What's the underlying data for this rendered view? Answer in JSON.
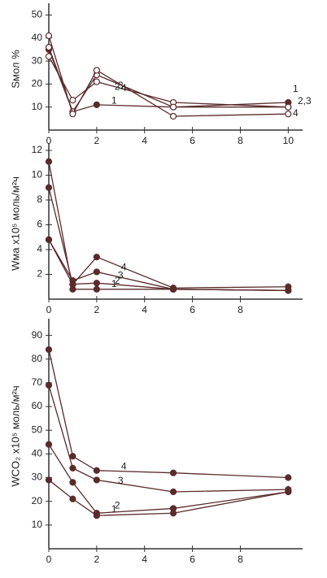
{
  "chart_data": [
    {
      "type": "line",
      "y_label": "Sмол %",
      "x": [
        0,
        1,
        2,
        5.2,
        10
      ],
      "xlim": [
        0,
        10.6
      ],
      "xticks": [
        0,
        2,
        4,
        6,
        8,
        10
      ],
      "ylim": [
        0,
        53
      ],
      "yticks": [
        10,
        20,
        30,
        40,
        50
      ],
      "series": [
        {
          "name": "1",
          "color": "#5a2b2b",
          "marker": "filled",
          "values": [
            35,
            8,
            11,
            10,
            12
          ]
        },
        {
          "name": "2",
          "color": "#5a2b2b",
          "marker": "open",
          "values": [
            32,
            13,
            21,
            12,
            10
          ]
        },
        {
          "name": "3",
          "color": "#5a2b2b",
          "marker": "open",
          "values": [
            36,
            8,
            24,
            10,
            10
          ]
        },
        {
          "name": "4",
          "color": "#5a2b2b",
          "marker": "open",
          "values": [
            41,
            7,
            26,
            6,
            7
          ]
        }
      ],
      "end_labels": [
        "1",
        "2,3",
        "4"
      ]
    },
    {
      "type": "line",
      "y_label": "Wма x10⁵ моль/м²ч",
      "x": [
        0,
        1,
        2,
        5.2,
        10
      ],
      "xlim": [
        0,
        10.6
      ],
      "xticks": [
        0,
        2,
        4,
        6,
        8
      ],
      "ylim": [
        0,
        12.2
      ],
      "yticks": [
        2,
        4,
        6,
        8,
        10,
        12
      ],
      "series": [
        {
          "name": "1",
          "color": "#5a2b2b",
          "marker": "filled",
          "values": [
            11.1,
            0.8,
            0.8,
            0.8,
            0.7
          ]
        },
        {
          "name": "2",
          "color": "#5a2b2b",
          "marker": "filled",
          "values": [
            9,
            1.2,
            1.3,
            0.8,
            0.7
          ]
        },
        {
          "name": "3",
          "color": "#5a2b2b",
          "marker": "filled",
          "values": [
            4.8,
            1.5,
            2.2,
            0.8,
            0.7
          ]
        },
        {
          "name": "4",
          "color": "#5a2b2b",
          "marker": "filled",
          "values": [
            4.8,
            1.2,
            3.4,
            0.9,
            1.0
          ]
        }
      ]
    },
    {
      "type": "line",
      "y_label": "WCO₂ x10⁵ моль/м²ч",
      "x": [
        0,
        1,
        2,
        5.2,
        10
      ],
      "xlim": [
        0,
        10.6
      ],
      "xticks": [
        0,
        2,
        4,
        6,
        8
      ],
      "ylim": [
        0,
        95
      ],
      "yticks": [
        10,
        20,
        30,
        40,
        50,
        60,
        70,
        80,
        90
      ],
      "series": [
        {
          "name": "1",
          "color": "#5a2b2b",
          "marker": "filled",
          "values": [
            29,
            21,
            14,
            15,
            24
          ]
        },
        {
          "name": "2",
          "color": "#5a2b2b",
          "marker": "filled",
          "values": [
            44,
            28,
            15,
            17,
            24
          ]
        },
        {
          "name": "3",
          "color": "#5a2b2b",
          "marker": "filled",
          "values": [
            69,
            34,
            29,
            24,
            25
          ]
        },
        {
          "name": "4",
          "color": "#5a2b2b",
          "marker": "filled",
          "values": [
            84,
            39,
            33,
            32,
            30
          ]
        }
      ]
    }
  ]
}
